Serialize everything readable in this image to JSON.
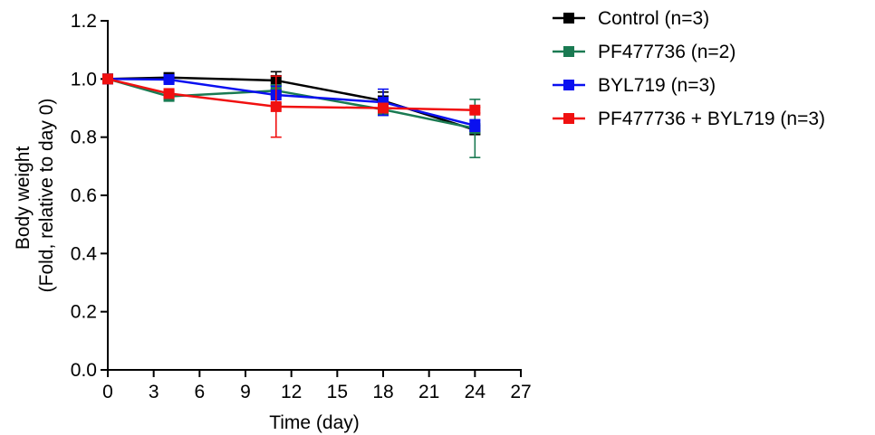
{
  "chart_data": {
    "type": "line",
    "title": "",
    "xlabel": "Time (day)",
    "ylabel_lines": [
      "Body weight",
      "(Fold, relative to day 0)"
    ],
    "xlim": [
      0,
      27
    ],
    "ylim": [
      0,
      1.2
    ],
    "x_ticks": [
      0,
      3,
      6,
      9,
      12,
      15,
      18,
      21,
      24,
      27
    ],
    "y_ticks": [
      0.0,
      0.2,
      0.4,
      0.6,
      0.8,
      1.0,
      1.2
    ],
    "y_tick_labels": [
      "0.0",
      "0.2",
      "0.4",
      "0.6",
      "0.8",
      "1.0",
      "1.2"
    ],
    "grid": false,
    "legend_position": "top-right, outside plot",
    "series": [
      {
        "name": "Control (n=3)",
        "color": "#000000",
        "marker": "square",
        "x": [
          0,
          4,
          11,
          18,
          24
        ],
        "y": [
          1.0,
          1.005,
          0.995,
          0.925,
          0.825
        ],
        "err": [
          0,
          0.01,
          0.03,
          0.03,
          0.015
        ]
      },
      {
        "name": "PF477736 (n=2)",
        "color": "#1a7a52",
        "marker": "square",
        "x": [
          0,
          4,
          11,
          18,
          24
        ],
        "y": [
          1.0,
          0.94,
          0.96,
          0.895,
          0.83
        ],
        "err": [
          0,
          0.01,
          0.02,
          0.02,
          0.1
        ]
      },
      {
        "name": "BYL719 (n=3)",
        "color": "#0a10f0",
        "marker": "square",
        "x": [
          0,
          4,
          11,
          18,
          24
        ],
        "y": [
          1.0,
          0.998,
          0.945,
          0.92,
          0.84
        ],
        "err": [
          0,
          0.01,
          0.03,
          0.045,
          0.02
        ]
      },
      {
        "name": "PF477736 + BYL719 (n=3)",
        "color": "#f01010",
        "marker": "square",
        "x": [
          0,
          4,
          11,
          18,
          24
        ],
        "y": [
          1.0,
          0.95,
          0.905,
          0.9,
          0.893
        ],
        "err": [
          0,
          0.01,
          0.105,
          0.01,
          0.01
        ]
      }
    ]
  }
}
